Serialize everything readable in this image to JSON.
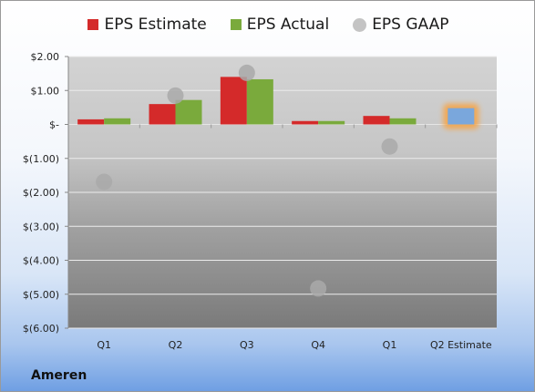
{
  "company_name": "Ameren",
  "colors": {
    "estimate": "#d42a2a",
    "actual": "#7aaa3c",
    "gaap": "#a9a9a9",
    "future_estimate": "#7aa7dc",
    "future_glow": "#f5a54a"
  },
  "chart_data": {
    "type": "bar",
    "title": "",
    "xlabel": "",
    "ylabel": "",
    "categories": [
      "Q1",
      "Q2",
      "Q3",
      "Q4",
      "Q1",
      "Q2 Estimate"
    ],
    "ylim": [
      -6.0,
      2.0
    ],
    "yticks": [
      2.0,
      1.0,
      0.0,
      -1.0,
      -2.0,
      -3.0,
      -4.0,
      -5.0,
      -6.0
    ],
    "ytick_labels": [
      "$2.00",
      "$1.00",
      "$-",
      "$(1.00)",
      "$(2.00)",
      "$(3.00)",
      "$(4.00)",
      "$(5.00)",
      "$(6.00)"
    ],
    "legend_position": "top",
    "grid": true,
    "series": [
      {
        "name": "EPS Estimate",
        "type": "bar",
        "values": [
          0.15,
          0.6,
          1.4,
          0.1,
          0.25,
          null
        ]
      },
      {
        "name": "EPS Actual",
        "type": "bar",
        "values": [
          0.18,
          0.72,
          1.33,
          0.1,
          0.18,
          null
        ]
      },
      {
        "name": "EPS GAAP",
        "type": "scatter",
        "values": [
          -1.69,
          0.85,
          1.52,
          -4.83,
          -0.65,
          null
        ]
      }
    ],
    "future_estimate": {
      "category_index": 5,
      "value": 0.48
    }
  }
}
